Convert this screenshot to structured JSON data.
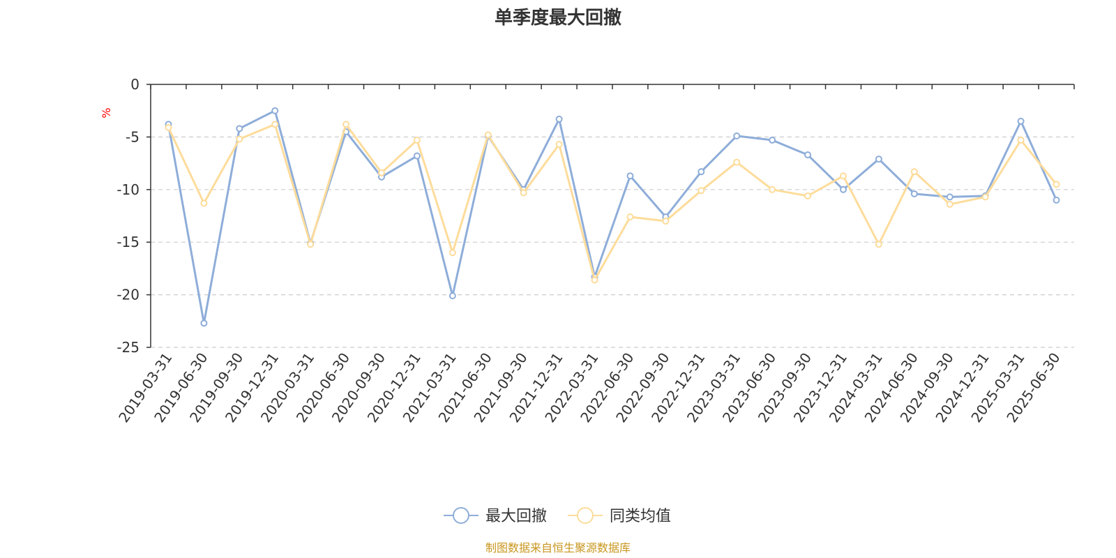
{
  "chart_data": {
    "type": "line",
    "title": "单季度最大回撤",
    "ylabel": "%",
    "ylim": [
      -25,
      0
    ],
    "yticks": [
      0,
      -5,
      -10,
      -15,
      -20,
      -25
    ],
    "grid": true,
    "legend_position": "bottom-center",
    "categories": [
      "2019-03-31",
      "2019-06-30",
      "2019-09-30",
      "2019-12-31",
      "2020-03-31",
      "2020-06-30",
      "2020-09-30",
      "2020-12-31",
      "2021-03-31",
      "2021-06-30",
      "2021-09-30",
      "2021-12-31",
      "2022-03-31",
      "2022-06-30",
      "2022-09-30",
      "2022-12-31",
      "2023-03-31",
      "2023-06-30",
      "2023-09-30",
      "2023-12-31",
      "2024-03-31",
      "2024-06-30",
      "2024-09-30",
      "2024-12-31",
      "2025-03-31",
      "2025-06-30"
    ],
    "series": [
      {
        "name": "最大回撤",
        "color": "#8eadd9",
        "values": [
          -3.8,
          -22.7,
          -4.2,
          -2.5,
          -15.1,
          -4.5,
          -8.8,
          -6.8,
          -20.1,
          -4.9,
          -10.0,
          -3.3,
          -18.3,
          -8.7,
          -12.6,
          -8.3,
          -4.9,
          -5.3,
          -6.7,
          -10.0,
          -7.1,
          -10.4,
          -10.7,
          -10.6,
          -3.5,
          -11.0
        ]
      },
      {
        "name": "同类均值",
        "color": "#fddc9b",
        "values": [
          -4.1,
          -11.3,
          -5.2,
          -3.8,
          -15.2,
          -3.8,
          -8.4,
          -5.3,
          -16.0,
          -4.8,
          -10.3,
          -5.7,
          -18.6,
          -12.6,
          -13.0,
          -10.1,
          -7.4,
          -10.0,
          -10.6,
          -8.7,
          -15.2,
          -8.3,
          -11.4,
          -10.7,
          -5.3,
          -9.5
        ]
      }
    ],
    "source": "制图数据来自恒生聚源数据库"
  }
}
